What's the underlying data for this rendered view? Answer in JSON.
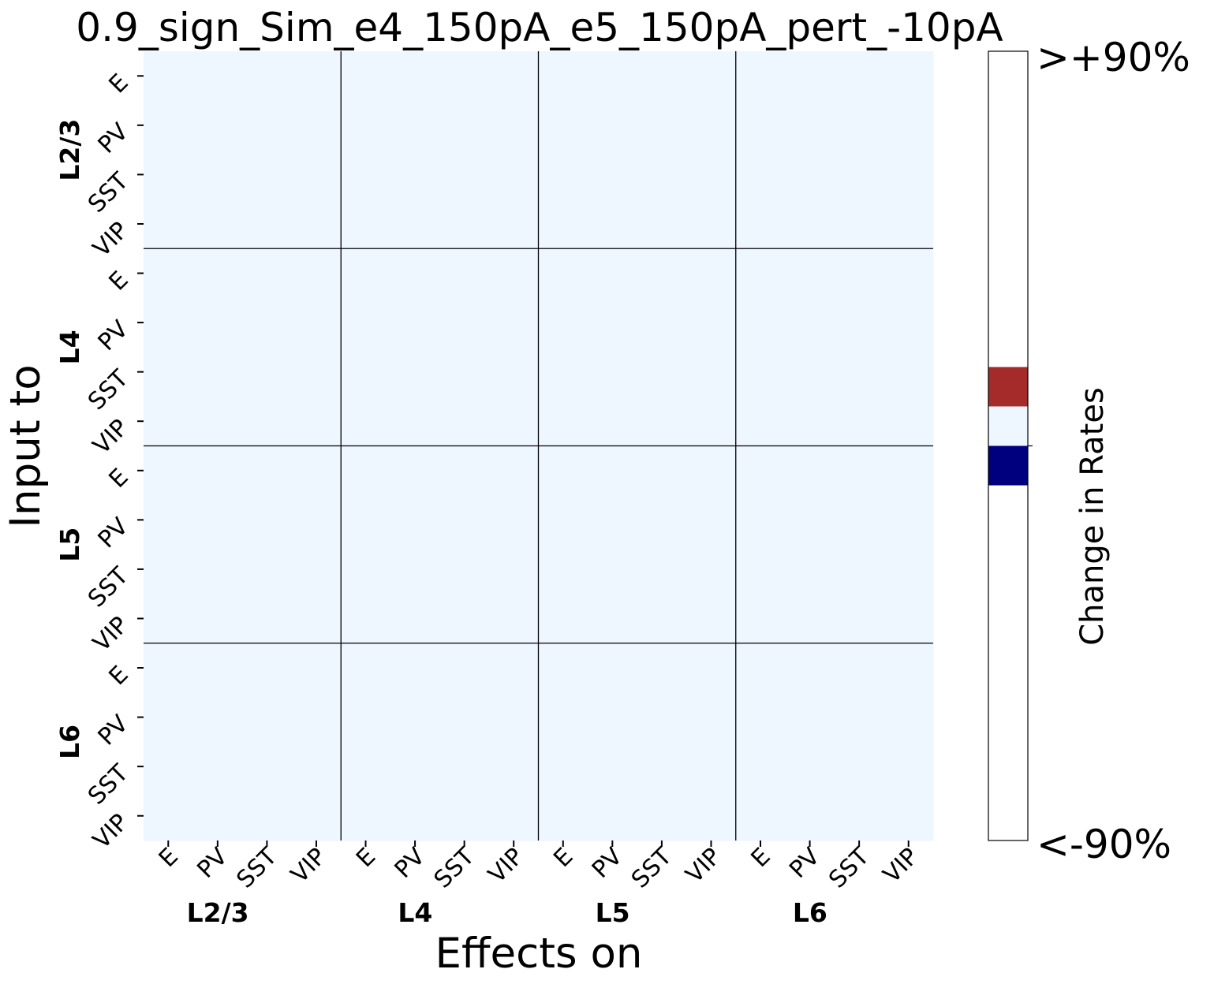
{
  "chart_data": {
    "type": "heatmap",
    "title": "0.9_sign_Sim_e4_150pA_e5_150pA_pert_-10pA",
    "xlabel": "Effects on",
    "ylabel": "Input to",
    "x_groups": [
      "L2/3",
      "L4",
      "L5",
      "L6"
    ],
    "y_groups": [
      "L2/3",
      "L4",
      "L5",
      "L6"
    ],
    "cell_types": [
      "E",
      "PV",
      "SST",
      "VIP"
    ],
    "values_note": "",
    "matrix": [
      [
        0,
        0,
        0,
        0,
        0,
        0,
        0,
        0,
        0,
        0,
        0,
        0,
        0,
        0,
        0,
        0
      ],
      [
        0,
        0,
        0,
        0,
        0,
        0,
        0,
        0,
        0,
        0,
        0,
        0,
        0,
        0,
        0,
        0
      ],
      [
        0,
        0,
        0,
        0,
        0,
        0,
        0,
        0,
        0,
        0,
        0,
        0,
        0,
        0,
        0,
        0
      ],
      [
        0,
        0,
        0,
        0,
        0,
        0,
        0,
        0,
        0,
        0,
        0,
        0,
        0,
        0,
        0,
        0
      ],
      [
        0,
        0,
        0,
        0,
        0,
        0,
        0,
        0,
        0,
        0,
        0,
        0,
        0,
        0,
        0,
        0
      ],
      [
        0,
        0,
        0,
        0,
        0,
        0,
        0,
        0,
        0,
        0,
        0,
        0,
        0,
        0,
        0,
        0
      ],
      [
        0,
        0,
        0,
        0,
        0,
        0,
        0,
        0,
        0,
        0,
        0,
        0,
        0,
        0,
        0,
        0
      ],
      [
        0,
        0,
        0,
        0,
        0,
        0,
        0,
        0,
        0,
        0,
        0,
        0,
        0,
        0,
        0,
        0
      ],
      [
        0,
        0,
        0,
        0,
        0,
        0,
        0,
        0,
        0,
        0,
        0,
        0,
        0,
        0,
        0,
        0
      ],
      [
        0,
        0,
        0,
        0,
        0,
        0,
        0,
        0,
        0,
        0,
        0,
        0,
        0,
        0,
        0,
        0
      ],
      [
        0,
        0,
        0,
        0,
        0,
        0,
        0,
        0,
        0,
        0,
        0,
        0,
        0,
        0,
        0,
        0
      ],
      [
        0,
        0,
        0,
        0,
        0,
        0,
        0,
        0,
        0,
        0,
        0,
        0,
        0,
        0,
        0,
        0
      ],
      [
        0,
        0,
        0,
        0,
        0,
        0,
        0,
        0,
        0,
        0,
        0,
        0,
        0,
        0,
        0,
        0
      ],
      [
        0,
        0,
        0,
        0,
        0,
        0,
        0,
        0,
        0,
        0,
        0,
        0,
        0,
        0,
        0,
        0
      ],
      [
        0,
        0,
        0,
        0,
        0,
        0,
        0,
        0,
        0,
        0,
        0,
        0,
        0,
        0,
        0,
        0
      ],
      [
        0,
        0,
        0,
        0,
        0,
        0,
        0,
        0,
        0,
        0,
        0,
        0,
        0,
        0,
        0,
        0
      ]
    ],
    "colorbar": {
      "label": "Change in Rates",
      "top_tick": ">+90%",
      "bottom_tick": "<-90%",
      "range": [
        -90,
        90
      ],
      "bands": [
        {
          "from": -90,
          "to": -9,
          "color": "#ffffff"
        },
        {
          "from": -9,
          "to": 0,
          "color": "#00007f"
        },
        {
          "from": 0,
          "to": 9,
          "color": "#eef6ff"
        },
        {
          "from": 9,
          "to": 18,
          "color": "#a52a2a"
        },
        {
          "from": 18,
          "to": 90,
          "color": "#ffffff"
        }
      ]
    },
    "cell_color": "#eef6ff",
    "grid_color": "#000000"
  }
}
